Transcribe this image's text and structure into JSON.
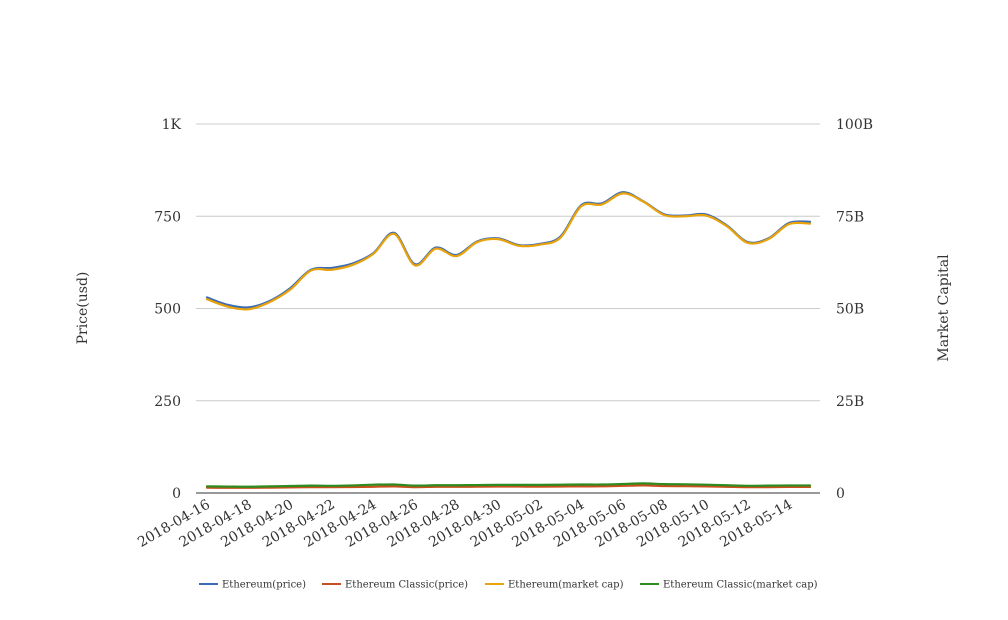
{
  "chart_data": {
    "type": "line",
    "title": "",
    "left_axis": {
      "label": "Price(usd)",
      "ticks": [
        0,
        250,
        500,
        750,
        1000
      ],
      "tick_labels": [
        "0",
        "250",
        "500",
        "750",
        "1K"
      ],
      "range": [
        0,
        1000
      ]
    },
    "right_axis": {
      "label": "Market Capital",
      "ticks": [
        0,
        25000000000,
        50000000000,
        75000000000,
        100000000000
      ],
      "tick_labels": [
        "0",
        "25B",
        "50B",
        "75B",
        "100B"
      ],
      "range": [
        0,
        100000000000
      ]
    },
    "x_tick_labels": [
      "2018-04-16",
      "2018-04-18",
      "2018-04-20",
      "2018-04-22",
      "2018-04-24",
      "2018-04-26",
      "2018-04-28",
      "2018-04-30",
      "2018-05-02",
      "2018-05-04",
      "2018-05-06",
      "2018-05-08",
      "2018-05-10",
      "2018-05-12",
      "2018-05-14"
    ],
    "x": [
      "2018-04-16",
      "2018-04-17",
      "2018-04-18",
      "2018-04-19",
      "2018-04-20",
      "2018-04-21",
      "2018-04-22",
      "2018-04-23",
      "2018-04-24",
      "2018-04-25",
      "2018-04-26",
      "2018-04-27",
      "2018-04-28",
      "2018-04-29",
      "2018-04-30",
      "2018-05-01",
      "2018-05-02",
      "2018-05-03",
      "2018-05-04",
      "2018-05-05",
      "2018-05-06",
      "2018-05-07",
      "2018-05-08",
      "2018-05-09",
      "2018-05-10",
      "2018-05-11",
      "2018-05-12",
      "2018-05-13",
      "2018-05-14",
      "2018-05-15"
    ],
    "grid": true,
    "legend_position": "bottom",
    "series": [
      {
        "name": "Ethereum(price)",
        "axis": "left",
        "color": "#3b6bb5",
        "values": [
          530,
          510,
          503,
          520,
          555,
          605,
          610,
          622,
          650,
          705,
          620,
          665,
          645,
          682,
          690,
          672,
          675,
          695,
          780,
          785,
          815,
          790,
          755,
          752,
          755,
          725,
          680,
          690,
          732,
          735
        ]
      },
      {
        "name": "Ethereum Classic(price)",
        "axis": "left",
        "color": "#c8501e",
        "values": [
          14.5,
          14.2,
          14.0,
          14.5,
          15.2,
          16.0,
          15.8,
          16.3,
          17.0,
          18.0,
          16.0,
          17.0,
          16.8,
          17.2,
          17.5,
          17.4,
          17.3,
          17.6,
          18.0,
          18.2,
          19.5,
          20.5,
          19.0,
          18.5,
          17.8,
          16.8,
          15.8,
          16.0,
          16.5,
          16.4
        ]
      },
      {
        "name": "Ethereum(market cap)",
        "axis": "right",
        "color": "#e8a20c",
        "values": [
          52500000000,
          50500000000,
          49800000000,
          51700000000,
          55100000000,
          60300000000,
          60500000000,
          61800000000,
          64800000000,
          70200000000,
          61700000000,
          66200000000,
          64200000000,
          68000000000,
          68800000000,
          67000000000,
          67300000000,
          69200000000,
          77700000000,
          78200000000,
          81200000000,
          78900000000,
          75300000000,
          75000000000,
          75200000000,
          72300000000,
          67800000000,
          68800000000,
          72900000000,
          73000000000
        ]
      },
      {
        "name": "Ethereum Classic(market cap)",
        "axis": "right",
        "color": "#2e8b1f",
        "values": [
          1800000000,
          1750000000,
          1700000000,
          1800000000,
          1900000000,
          2000000000,
          1950000000,
          2050000000,
          2250000000,
          2300000000,
          2000000000,
          2100000000,
          2100000000,
          2150000000,
          2200000000,
          2200000000,
          2200000000,
          2250000000,
          2300000000,
          2300000000,
          2450000000,
          2600000000,
          2400000000,
          2350000000,
          2250000000,
          2100000000,
          1950000000,
          2000000000,
          2050000000,
          2050000000
        ]
      }
    ]
  }
}
